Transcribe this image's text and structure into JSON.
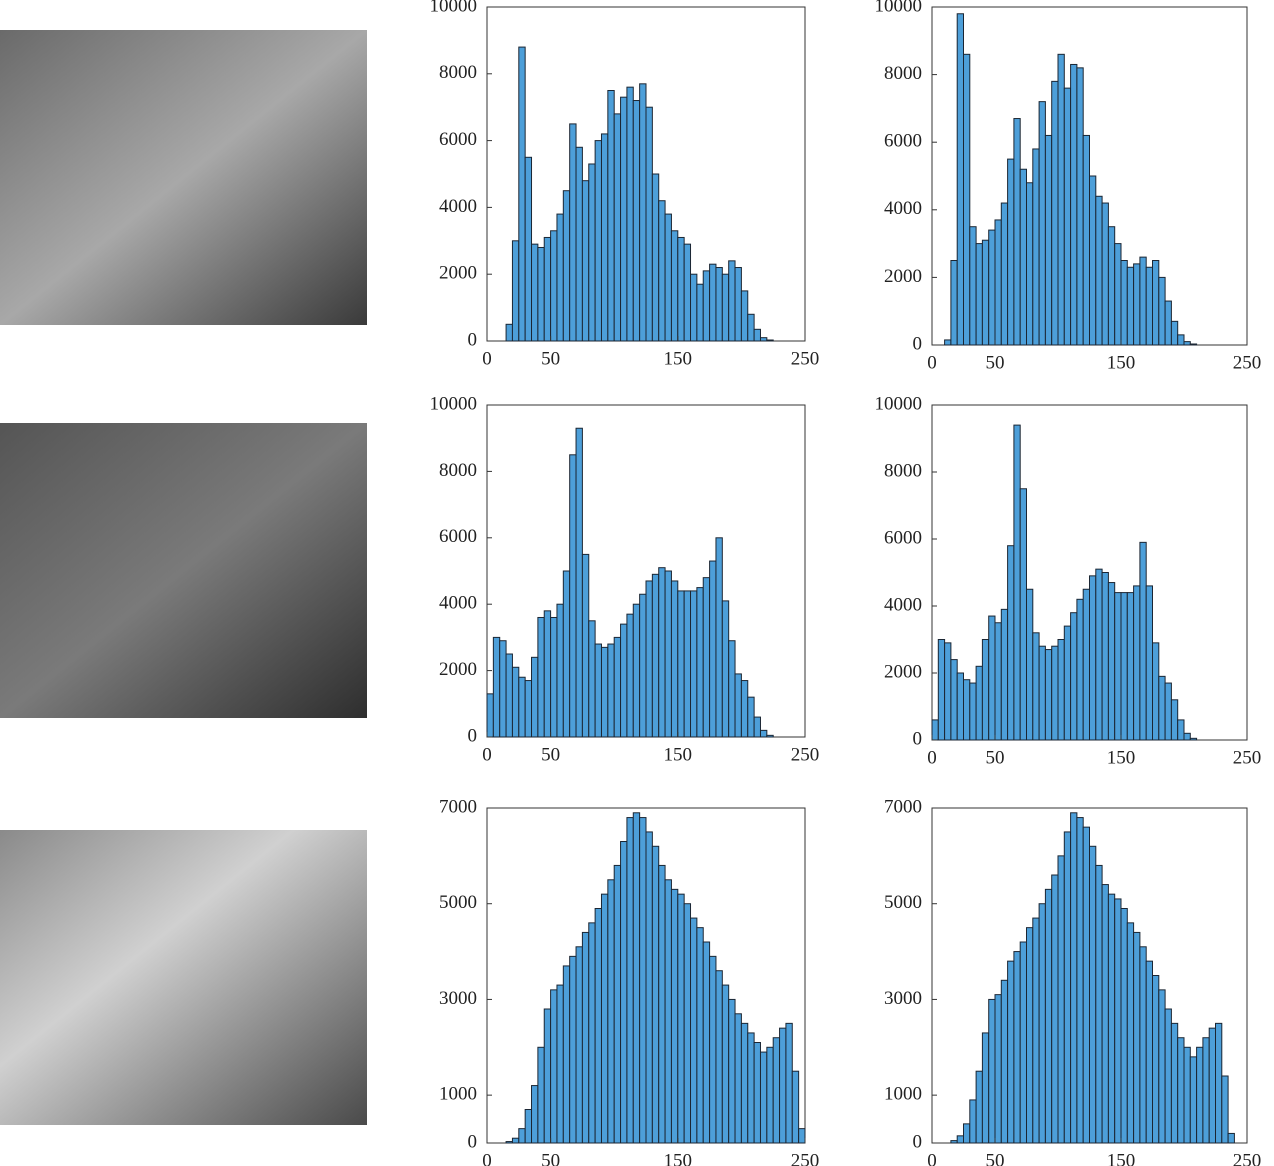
{
  "chart_data": [
    {
      "type": "histogram",
      "color": "#4d9fd9",
      "bins": [
        0,
        5,
        10,
        15,
        20,
        25,
        30,
        35,
        40,
        45,
        50,
        55,
        60,
        65,
        70,
        75,
        80,
        85,
        90,
        95,
        100,
        105,
        110,
        115,
        120,
        125,
        130,
        135,
        140,
        145,
        150,
        155,
        160,
        165,
        170,
        175,
        180,
        185,
        190,
        195,
        200,
        205,
        210,
        215,
        220,
        225,
        230,
        235,
        240,
        245,
        250
      ],
      "values": [
        0,
        0,
        0,
        500,
        3000,
        8800,
        5500,
        2900,
        2800,
        3100,
        3300,
        3800,
        4500,
        6500,
        5800,
        4800,
        5300,
        6000,
        6200,
        7500,
        6800,
        7300,
        7600,
        7200,
        7700,
        7000,
        5000,
        4200,
        3800,
        3300,
        3100,
        2900,
        2000,
        1700,
        2100,
        2300,
        2200,
        2000,
        2400,
        2200,
        1500,
        800,
        350,
        100,
        30,
        0,
        0,
        0,
        0,
        0
      ],
      "xlim": [
        0,
        250
      ],
      "ylim": [
        0,
        10000
      ],
      "xticks": [
        0,
        50,
        150,
        250
      ],
      "yticks": [
        0,
        2000,
        4000,
        6000,
        8000,
        10000
      ]
    },
    {
      "type": "histogram",
      "color": "#4d9fd9",
      "bins": [
        0,
        5,
        10,
        15,
        20,
        25,
        30,
        35,
        40,
        45,
        50,
        55,
        60,
        65,
        70,
        75,
        80,
        85,
        90,
        95,
        100,
        105,
        110,
        115,
        120,
        125,
        130,
        135,
        140,
        145,
        150,
        155,
        160,
        165,
        170,
        175,
        180,
        185,
        190,
        195,
        200,
        205,
        210,
        215,
        220,
        225,
        230,
        235,
        240,
        245,
        250
      ],
      "values": [
        0,
        0,
        150,
        2500,
        9800,
        8600,
        3500,
        3000,
        3100,
        3400,
        3700,
        4200,
        5500,
        6700,
        5200,
        4800,
        5800,
        7200,
        6200,
        7800,
        8600,
        7600,
        8300,
        8200,
        6200,
        5000,
        4400,
        4200,
        3500,
        3000,
        2500,
        2300,
        2400,
        2600,
        2300,
        2500,
        2000,
        1300,
        700,
        300,
        100,
        30,
        0,
        0,
        0,
        0,
        0,
        0,
        0,
        0
      ],
      "xlim": [
        0,
        250
      ],
      "ylim": [
        0,
        10000
      ],
      "xticks": [
        0,
        50,
        150,
        250
      ],
      "yticks": [
        0,
        2000,
        4000,
        6000,
        8000,
        10000
      ]
    },
    {
      "type": "histogram",
      "color": "#4d9fd9",
      "bins": [
        0,
        5,
        10,
        15,
        20,
        25,
        30,
        35,
        40,
        45,
        50,
        55,
        60,
        65,
        70,
        75,
        80,
        85,
        90,
        95,
        100,
        105,
        110,
        115,
        120,
        125,
        130,
        135,
        140,
        145,
        150,
        155,
        160,
        165,
        170,
        175,
        180,
        185,
        190,
        195,
        200,
        205,
        210,
        215,
        220,
        225,
        230,
        235,
        240,
        245,
        250
      ],
      "values": [
        1300,
        3000,
        2900,
        2500,
        2100,
        1800,
        1700,
        2400,
        3600,
        3800,
        3600,
        4000,
        5000,
        8500,
        9300,
        5500,
        3500,
        2800,
        2700,
        2800,
        3000,
        3400,
        3700,
        4000,
        4300,
        4700,
        4900,
        5100,
        5000,
        4700,
        4400,
        4400,
        4400,
        4500,
        4800,
        5300,
        6000,
        4100,
        2900,
        1900,
        1700,
        1200,
        600,
        200,
        50,
        0,
        0,
        0,
        0,
        0
      ],
      "xlim": [
        0,
        250
      ],
      "ylim": [
        0,
        10000
      ],
      "xticks": [
        0,
        50,
        150,
        250
      ],
      "yticks": [
        0,
        2000,
        4000,
        6000,
        8000,
        10000
      ]
    },
    {
      "type": "histogram",
      "color": "#4d9fd9",
      "bins": [
        0,
        5,
        10,
        15,
        20,
        25,
        30,
        35,
        40,
        45,
        50,
        55,
        60,
        65,
        70,
        75,
        80,
        85,
        90,
        95,
        100,
        105,
        110,
        115,
        120,
        125,
        130,
        135,
        140,
        145,
        150,
        155,
        160,
        165,
        170,
        175,
        180,
        185,
        190,
        195,
        200,
        205,
        210,
        215,
        220,
        225,
        230,
        235,
        240,
        245,
        250
      ],
      "values": [
        600,
        3000,
        2900,
        2400,
        2000,
        1800,
        1700,
        2200,
        3000,
        3700,
        3500,
        3900,
        5800,
        9400,
        7500,
        4500,
        3200,
        2800,
        2700,
        2800,
        3000,
        3400,
        3800,
        4200,
        4500,
        4900,
        5100,
        5000,
        4700,
        4400,
        4400,
        4400,
        4600,
        5900,
        4600,
        2900,
        1900,
        1700,
        1200,
        600,
        200,
        50,
        0,
        0,
        0,
        0,
        0,
        0,
        0,
        0
      ],
      "xlim": [
        0,
        250
      ],
      "ylim": [
        0,
        10000
      ],
      "xticks": [
        0,
        50,
        150,
        250
      ],
      "yticks": [
        0,
        2000,
        4000,
        6000,
        8000,
        10000
      ]
    },
    {
      "type": "histogram",
      "color": "#4d9fd9",
      "bins": [
        0,
        5,
        10,
        15,
        20,
        25,
        30,
        35,
        40,
        45,
        50,
        55,
        60,
        65,
        70,
        75,
        80,
        85,
        90,
        95,
        100,
        105,
        110,
        115,
        120,
        125,
        130,
        135,
        140,
        145,
        150,
        155,
        160,
        165,
        170,
        175,
        180,
        185,
        190,
        195,
        200,
        205,
        210,
        215,
        220,
        225,
        230,
        235,
        240,
        245,
        250
      ],
      "values": [
        0,
        0,
        0,
        30,
        100,
        300,
        700,
        1200,
        2000,
        2800,
        3200,
        3300,
        3700,
        3900,
        4100,
        4400,
        4600,
        4900,
        5200,
        5500,
        5800,
        6300,
        6800,
        6900,
        6800,
        6500,
        6200,
        5800,
        5500,
        5300,
        5200,
        5000,
        4700,
        4500,
        4200,
        3900,
        3600,
        3300,
        3000,
        2700,
        2500,
        2300,
        2100,
        1900,
        2000,
        2200,
        2400,
        2500,
        1500,
        300
      ],
      "xlim": [
        0,
        250
      ],
      "ylim": [
        0,
        7000
      ],
      "xticks": [
        0,
        50,
        150,
        250
      ],
      "yticks": [
        0,
        1000,
        3000,
        5000,
        7000
      ]
    },
    {
      "type": "histogram",
      "color": "#4d9fd9",
      "bins": [
        0,
        5,
        10,
        15,
        20,
        25,
        30,
        35,
        40,
        45,
        50,
        55,
        60,
        65,
        70,
        75,
        80,
        85,
        90,
        95,
        100,
        105,
        110,
        115,
        120,
        125,
        130,
        135,
        140,
        145,
        150,
        155,
        160,
        165,
        170,
        175,
        180,
        185,
        190,
        195,
        200,
        205,
        210,
        215,
        220,
        225,
        230,
        235,
        240,
        245,
        250
      ],
      "values": [
        0,
        0,
        0,
        50,
        150,
        400,
        900,
        1500,
        2300,
        3000,
        3100,
        3400,
        3800,
        4000,
        4200,
        4500,
        4700,
        5000,
        5300,
        5600,
        6000,
        6500,
        6900,
        6800,
        6600,
        6200,
        5800,
        5400,
        5200,
        5100,
        4900,
        4600,
        4400,
        4100,
        3800,
        3500,
        3200,
        2800,
        2500,
        2200,
        2000,
        1800,
        2000,
        2200,
        2400,
        2500,
        1400,
        200,
        0,
        0
      ],
      "xlim": [
        0,
        250
      ],
      "ylim": [
        0,
        7000
      ],
      "xticks": [
        0,
        50,
        150,
        250
      ],
      "yticks": [
        0,
        1000,
        3000,
        5000,
        7000
      ]
    }
  ]
}
